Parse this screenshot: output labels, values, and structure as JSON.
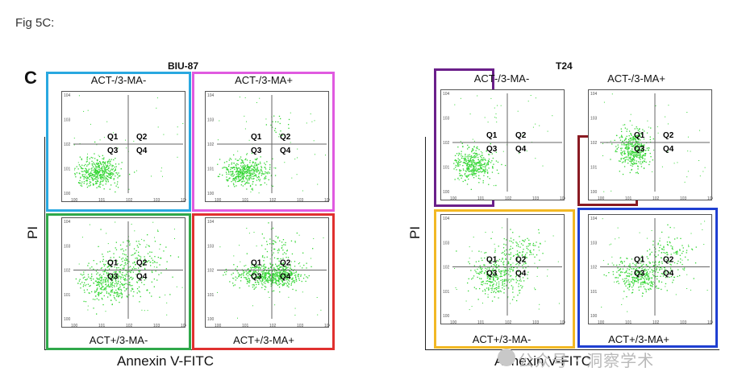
{
  "caption": "Fig 5C:",
  "panel_letter": "C",
  "x_axis_label": "Annexin V-FITC",
  "y_axis_label": "PI",
  "quadrant_labels": [
    "Q1",
    "Q2",
    "Q3",
    "Q4"
  ],
  "tick_exponents": [
    "0",
    "1",
    "2",
    "3",
    "4"
  ],
  "groups": [
    {
      "title": "BIU-87",
      "plots": [
        {
          "label": "ACT-/3-MA-",
          "box_color": "#29a8e0"
        },
        {
          "label": "ACT-/3-MA+",
          "box_color": "#e05ae0"
        },
        {
          "label": "ACT+/3-MA-",
          "box_color": "#2fa84a"
        },
        {
          "label": "ACT+/3-MA+",
          "box_color": "#e0302f"
        }
      ]
    },
    {
      "title": "T24",
      "plots": [
        {
          "label": "ACT-/3-MA-",
          "box_color": "#6b1f8a"
        },
        {
          "label": "ACT-/3-MA+",
          "box_color": "#8a1a22"
        },
        {
          "label": "ACT+/3-MA-",
          "box_color": "#f2b824"
        },
        {
          "label": "ACT+/3-MA+",
          "box_color": "#1f3fd1"
        }
      ]
    }
  ],
  "watermark": "公众号 · 洞察学术",
  "colors": {
    "dots": "#33d633",
    "gate": "#666666"
  }
}
